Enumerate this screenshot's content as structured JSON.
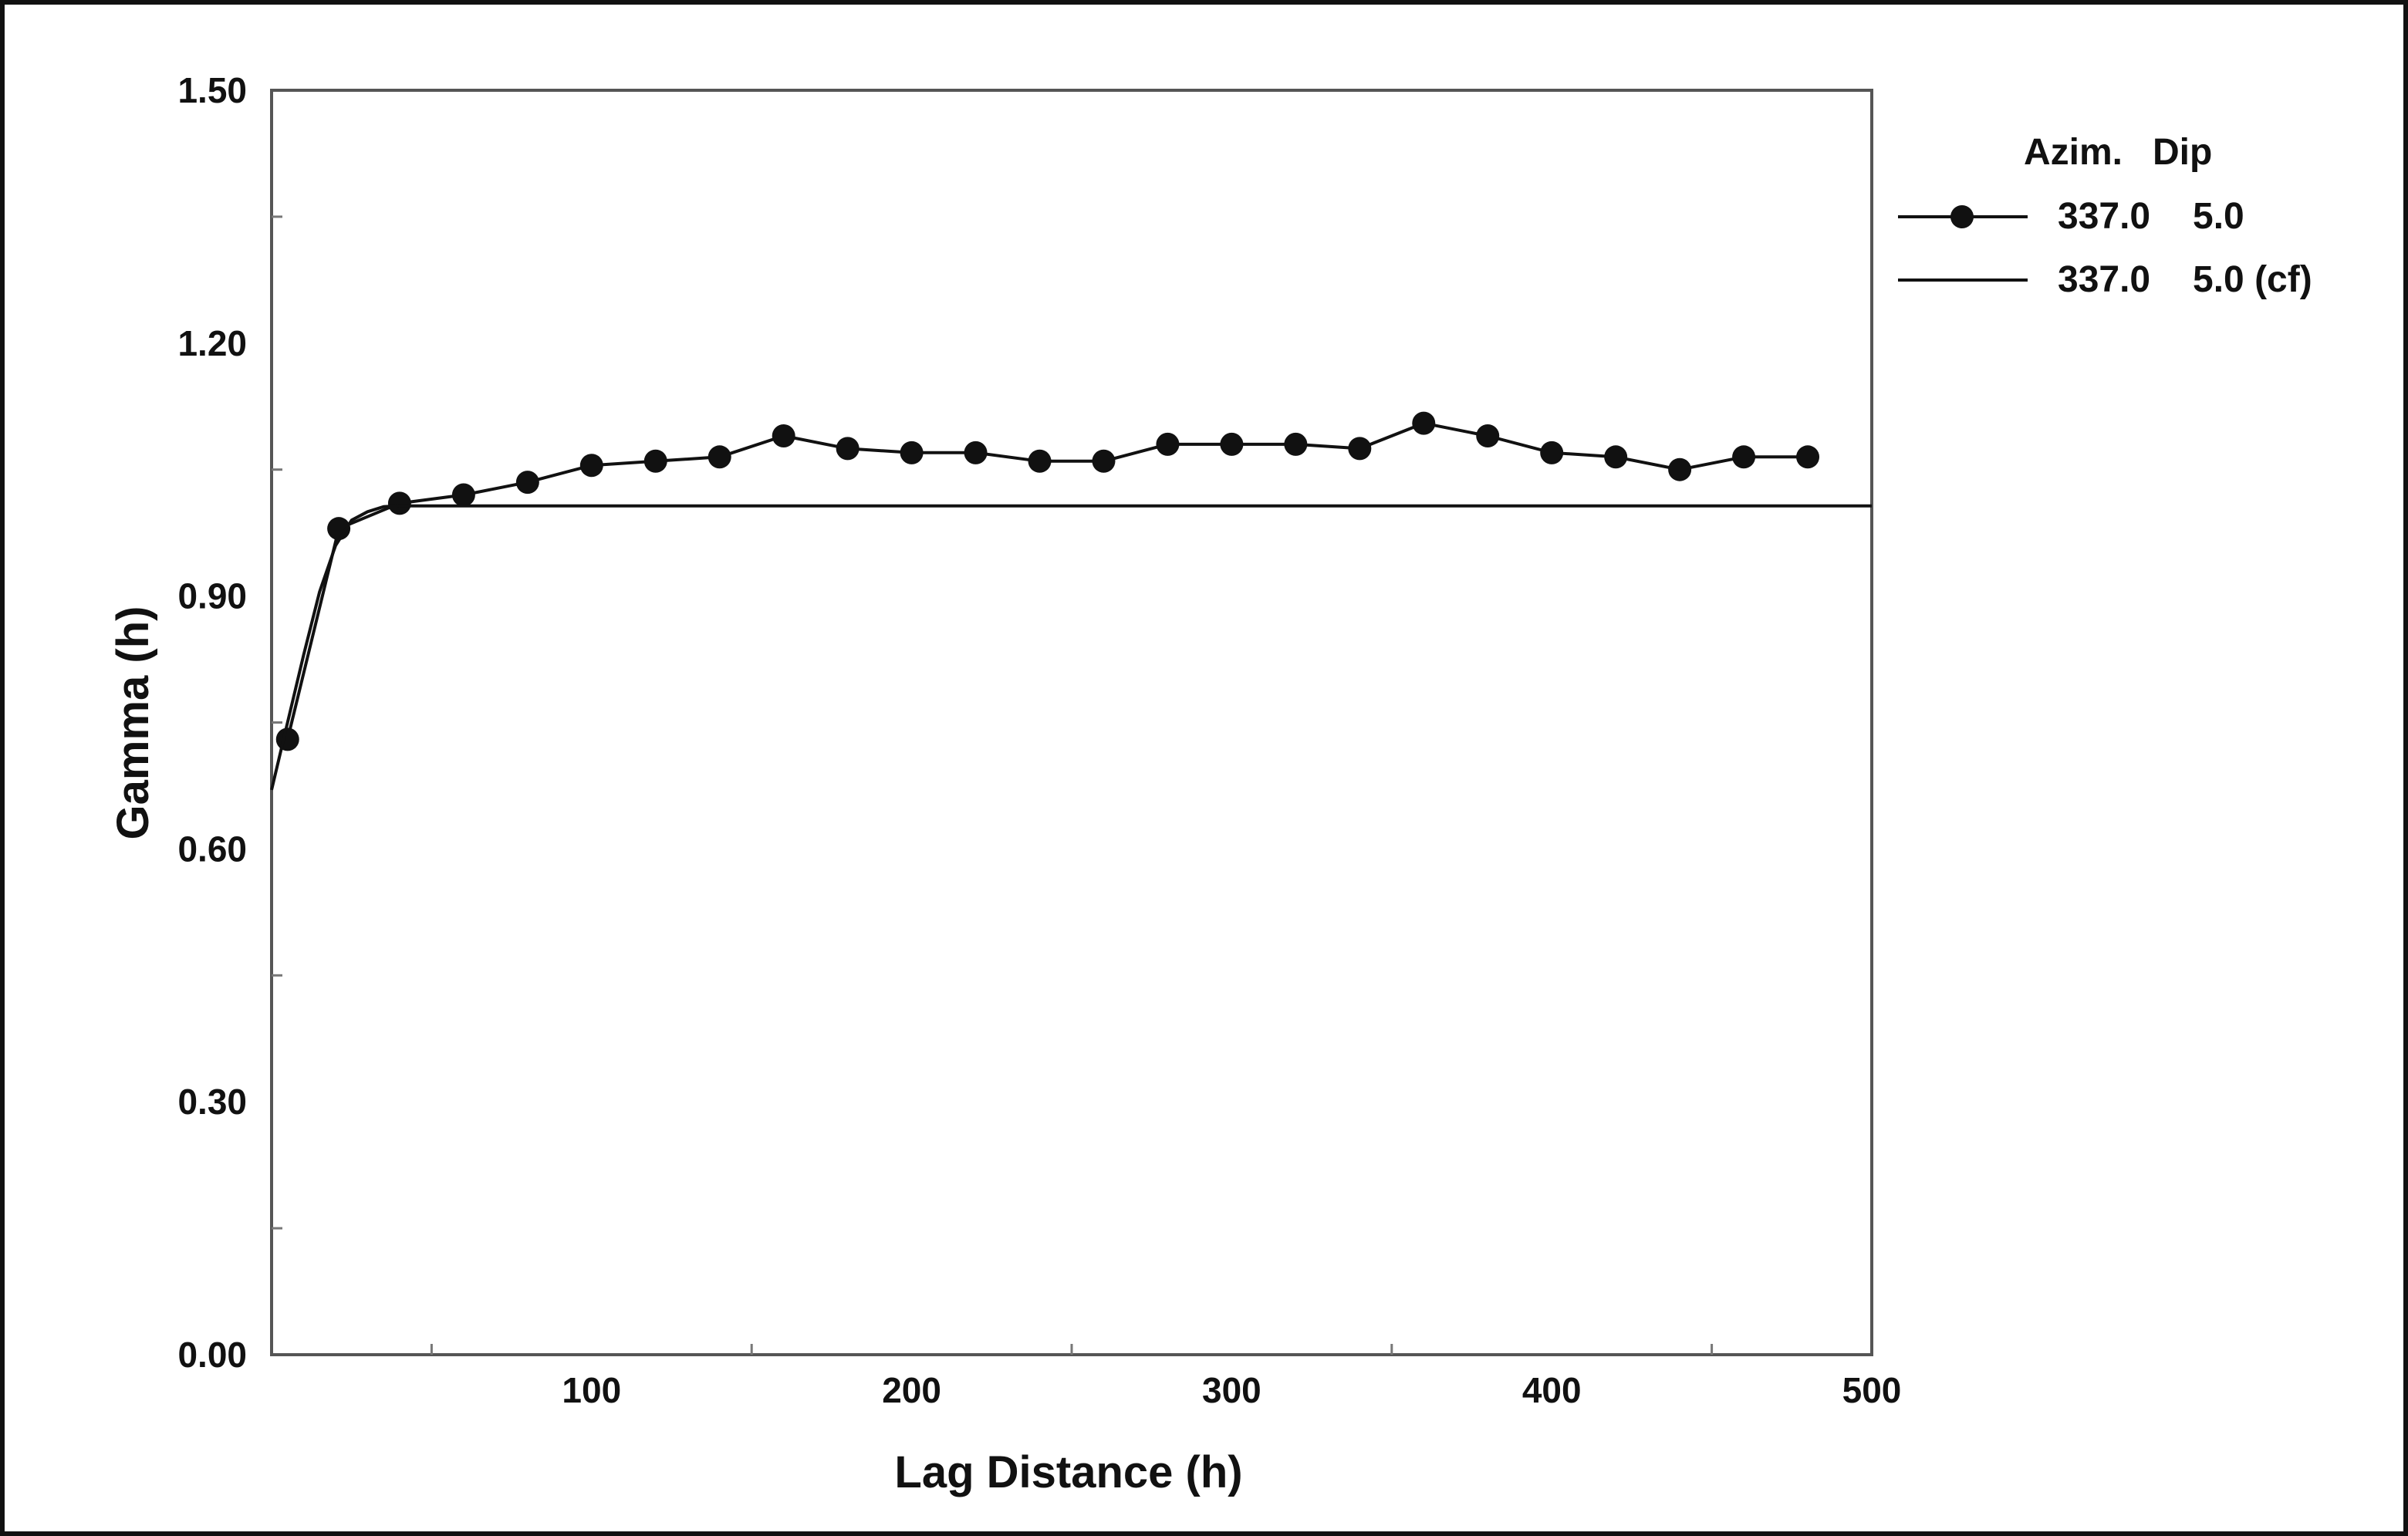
{
  "chart_data": {
    "type": "line",
    "title": "",
    "xlabel": "Lag Distance (h)",
    "ylabel": "Gamma (h)",
    "xlim": [
      0,
      500
    ],
    "ylim": [
      0,
      1.5
    ],
    "x_ticks": [
      100,
      200,
      300,
      400,
      500
    ],
    "x_tick_labels": [
      "100",
      "200",
      "300",
      "400",
      "500"
    ],
    "y_ticks": [
      0,
      0.3,
      0.6,
      0.9,
      1.2,
      1.5
    ],
    "y_tick_labels": [
      "0.00",
      "0.30",
      "0.60",
      "0.90",
      "1.20",
      "1.50"
    ],
    "grid": false,
    "legend": {
      "placement": "right-outside-top",
      "header_azim": "Azim.",
      "header_dip": "Dip",
      "entries": [
        {
          "azim": "337.0",
          "dip": "5.0",
          "marker": "circle"
        },
        {
          "azim": "337.0",
          "dip": "5.0 (cf)",
          "marker": "none"
        }
      ]
    },
    "series": [
      {
        "style": "line-with-markers",
        "color": "#111111",
        "x": [
          5,
          21,
          40,
          60,
          80,
          100,
          120,
          140,
          160,
          180,
          200,
          220,
          240,
          260,
          280,
          300,
          320,
          340,
          360,
          380,
          400,
          420,
          440,
          460,
          480
        ],
        "y": [
          0.73,
          0.98,
          1.01,
          1.02,
          1.035,
          1.055,
          1.06,
          1.065,
          1.09,
          1.075,
          1.07,
          1.07,
          1.06,
          1.06,
          1.08,
          1.08,
          1.08,
          1.075,
          1.105,
          1.09,
          1.07,
          1.065,
          1.05,
          1.065,
          1.065
        ]
      },
      {
        "style": "line",
        "color": "#111111",
        "x": [
          0,
          5,
          10,
          15,
          20,
          25,
          30,
          35,
          40,
          50,
          500
        ],
        "y": [
          0.67,
          0.75,
          0.83,
          0.905,
          0.96,
          0.99,
          1.0,
          1.006,
          1.007,
          1.007,
          1.007
        ]
      }
    ]
  }
}
